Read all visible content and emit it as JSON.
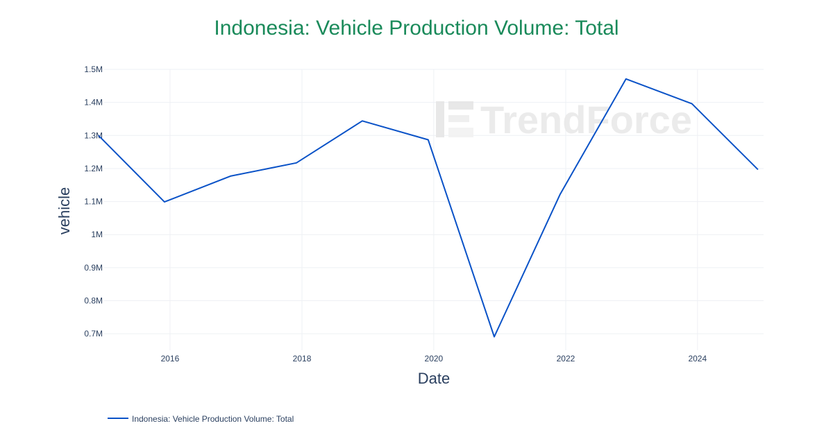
{
  "chart_data": {
    "type": "line",
    "title": "Indonesia: Vehicle Production Volume: Total",
    "xlabel": "Date",
    "ylabel": "vehicle",
    "x_ticks": [
      "2016",
      "2018",
      "2020",
      "2022",
      "2024"
    ],
    "y_ticks": [
      "0.7M",
      "0.8M",
      "0.9M",
      "1M",
      "1.1M",
      "1.2M",
      "1.3M",
      "1.4M",
      "1.5M"
    ],
    "xlim": [
      "2015-01-01",
      "2025-01-01"
    ],
    "ylim": [
      650000,
      1500000
    ],
    "grid": true,
    "legend_position": "bottom-left",
    "series": [
      {
        "name": "Indonesia: Vehicle Production Volume: Total",
        "color": "#0a52c7",
        "x": [
          "2014-12-01",
          "2015-12-01",
          "2016-12-01",
          "2017-12-01",
          "2018-12-01",
          "2019-12-01",
          "2020-12-01",
          "2021-12-01",
          "2022-12-01",
          "2023-12-01",
          "2024-12-01"
        ],
        "values": [
          1300000,
          1099000,
          1177000,
          1217000,
          1344000,
          1287000,
          691000,
          1122000,
          1471000,
          1396000,
          1197000
        ]
      }
    ],
    "title_color": "#1a8a5a",
    "watermark": "TrendForce"
  }
}
